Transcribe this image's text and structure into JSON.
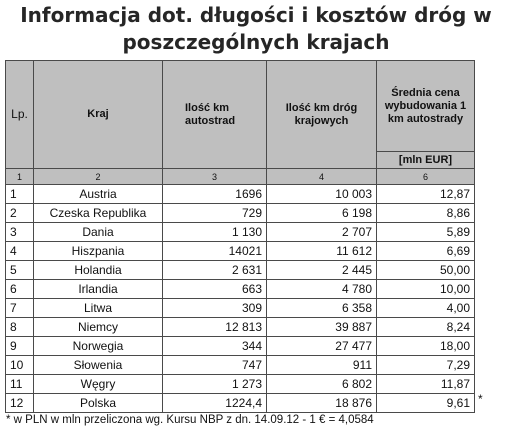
{
  "title": {
    "line1": "Informacja dot. długości i kosztów dróg w",
    "line2": "poszczególnych krajach"
  },
  "table": {
    "headers": {
      "lp": "Lp.",
      "kraj": "Kraj",
      "autostrady": "Ilość km autostrad",
      "drogi_krajowe": "Ilość km dróg krajowych",
      "cena": "Średnia cena wybudowania 1 km autostrady",
      "unit": "[mln EUR]"
    },
    "index_row": [
      "1",
      "2",
      "3",
      "4",
      "6"
    ],
    "rows": [
      {
        "lp": "1",
        "kraj": "Austria",
        "autostrady": "1696",
        "drogi": "10 003",
        "cena": "12,87"
      },
      {
        "lp": "2",
        "kraj": "Czeska Republika",
        "autostrady": "729",
        "drogi": "6 198",
        "cena": "8,86"
      },
      {
        "lp": "3",
        "kraj": "Dania",
        "autostrady": "1 130",
        "drogi": "2 707",
        "cena": "5,89"
      },
      {
        "lp": "4",
        "kraj": "Hiszpania",
        "autostrady": "14021",
        "drogi": "11 612",
        "cena": "6,69"
      },
      {
        "lp": "5",
        "kraj": "Holandia",
        "autostrady": "2 631",
        "drogi": "2 445",
        "cena": "50,00"
      },
      {
        "lp": "6",
        "kraj": "Irlandia",
        "autostrady": "663",
        "drogi": "4 780",
        "cena": "10,00"
      },
      {
        "lp": "7",
        "kraj": "Litwa",
        "autostrady": "309",
        "drogi": "6 358",
        "cena": "4,00"
      },
      {
        "lp": "8",
        "kraj": "Niemcy",
        "autostrady": "12 813",
        "drogi": "39 887",
        "cena": "8,24"
      },
      {
        "lp": "9",
        "kraj": "Norwegia",
        "autostrady": "344",
        "drogi": "27 477",
        "cena": "18,00"
      },
      {
        "lp": "10",
        "kraj": "Słowenia",
        "autostrady": "747",
        "drogi": "911",
        "cena": "7,29"
      },
      {
        "lp": "11",
        "kraj": "Węgry",
        "autostrady": "1 273",
        "drogi": "6 802",
        "cena": "11,87"
      },
      {
        "lp": "12",
        "kraj": "Polska",
        "autostrady": "1224,4",
        "drogi": "18 876",
        "cena": "9,61"
      }
    ]
  },
  "star": "*",
  "footnote": "* w PLN w mln przeliczona wg. Kursu NBP z dn. 14.09.12  - 1 € = 4,0584"
}
